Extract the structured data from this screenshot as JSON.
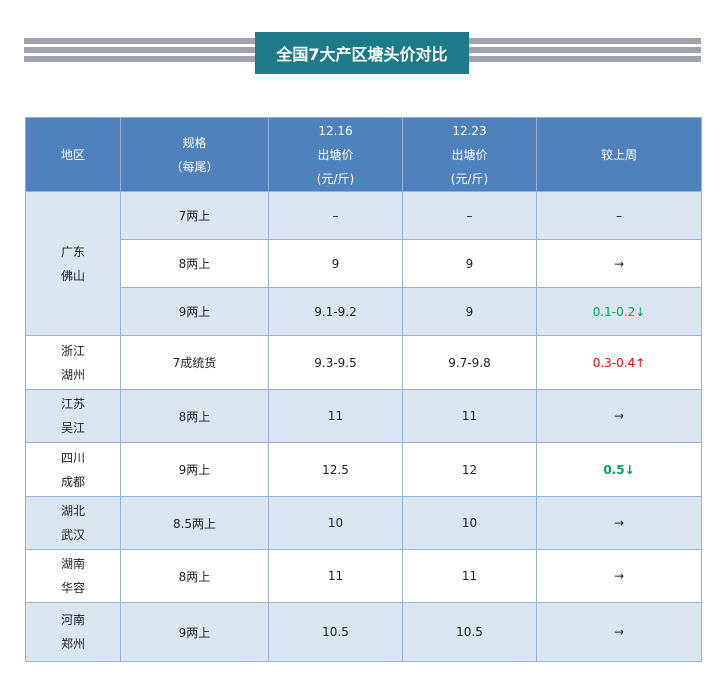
{
  "title": "全国7大产区塘头价对比",
  "colors": {
    "header": "#4f81bd",
    "title_bg": "#1d7a88",
    "down": "#00a651",
    "up": "#ff0000"
  },
  "headers": {
    "region": "地区",
    "spec_line1": "规格",
    "spec_line2": "（每尾）",
    "d1_date": "12.16",
    "d2_date": "12.23",
    "price_line": "出塘价",
    "unit_line": "(元/斤)",
    "change": "较上周"
  },
  "rows": [
    {
      "region1": "广东",
      "region2": "佛山",
      "spec": "7两上",
      "p1": "–",
      "p2": "–",
      "change": "–"
    },
    {
      "spec": "8两上",
      "p1": "9",
      "p2": "9",
      "change": "→"
    },
    {
      "spec": "9两上",
      "p1": "9.1-9.2",
      "p2": "9",
      "change": "0.1-0.2↓"
    },
    {
      "region1": "浙江",
      "region2": "湖州",
      "spec": "7成统货",
      "p1": "9.3-9.5",
      "p2": "9.7-9.8",
      "change": "0.3-0.4↑"
    },
    {
      "region1": "江苏",
      "region2": "吴江",
      "spec": "8两上",
      "p1": "11",
      "p2": "11",
      "change": "→"
    },
    {
      "region1": "四川",
      "region2": "成都",
      "spec": "9两上",
      "p1": "12.5",
      "p2": "12",
      "change": "0.5↓"
    },
    {
      "region1": "湖北",
      "region2": "武汉",
      "spec": "8.5两上",
      "p1": "10",
      "p2": "10",
      "change": "→"
    },
    {
      "region1": "湖南",
      "region2": "华容",
      "spec": "8两上",
      "p1": "11",
      "p2": "11",
      "change": "→"
    },
    {
      "region1": "河南",
      "region2": "郑州",
      "spec": "9两上",
      "p1": "10.5",
      "p2": "10.5",
      "change": "→"
    }
  ]
}
